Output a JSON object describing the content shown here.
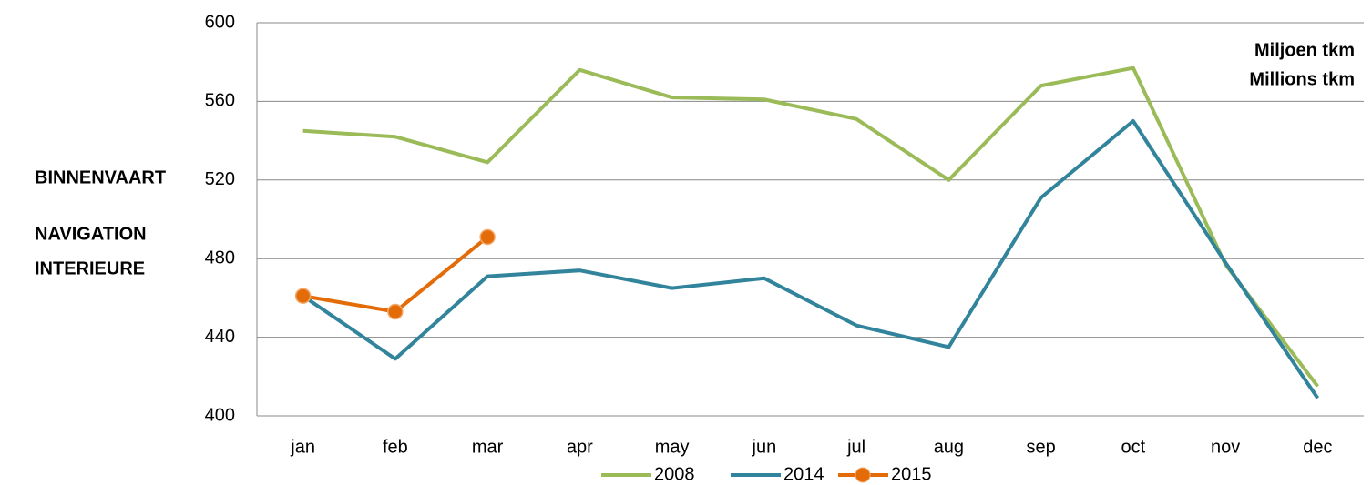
{
  "chart_data": {
    "type": "line",
    "y_label": [
      "BINNENVAART",
      "NAVIGATION",
      "INTERIEURE"
    ],
    "unit_label": [
      "Miljoen tkm",
      "Millions tkm"
    ],
    "categories": [
      "jan",
      "feb",
      "mar",
      "apr",
      "may",
      "jun",
      "jul",
      "aug",
      "sep",
      "oct",
      "nov",
      "dec"
    ],
    "series": [
      {
        "name": "2008",
        "color": "#9bbb59",
        "marker": false,
        "values": [
          545,
          542,
          529,
          576,
          562,
          561,
          551,
          520,
          568,
          577,
          477,
          415
        ]
      },
      {
        "name": "2014",
        "color": "#31849b",
        "marker": false,
        "values": [
          461,
          429,
          471,
          474,
          465,
          470,
          446,
          435,
          511,
          550,
          478,
          409
        ]
      },
      {
        "name": "2015",
        "color": "#e36c09",
        "marker": true,
        "values": [
          461,
          453,
          491,
          null,
          null,
          null,
          null,
          null,
          null,
          null,
          null,
          null
        ]
      }
    ],
    "ylim": [
      400,
      600
    ],
    "yticks": [
      400,
      440,
      480,
      520,
      560,
      600
    ],
    "grid": true,
    "legend": "bottom"
  }
}
